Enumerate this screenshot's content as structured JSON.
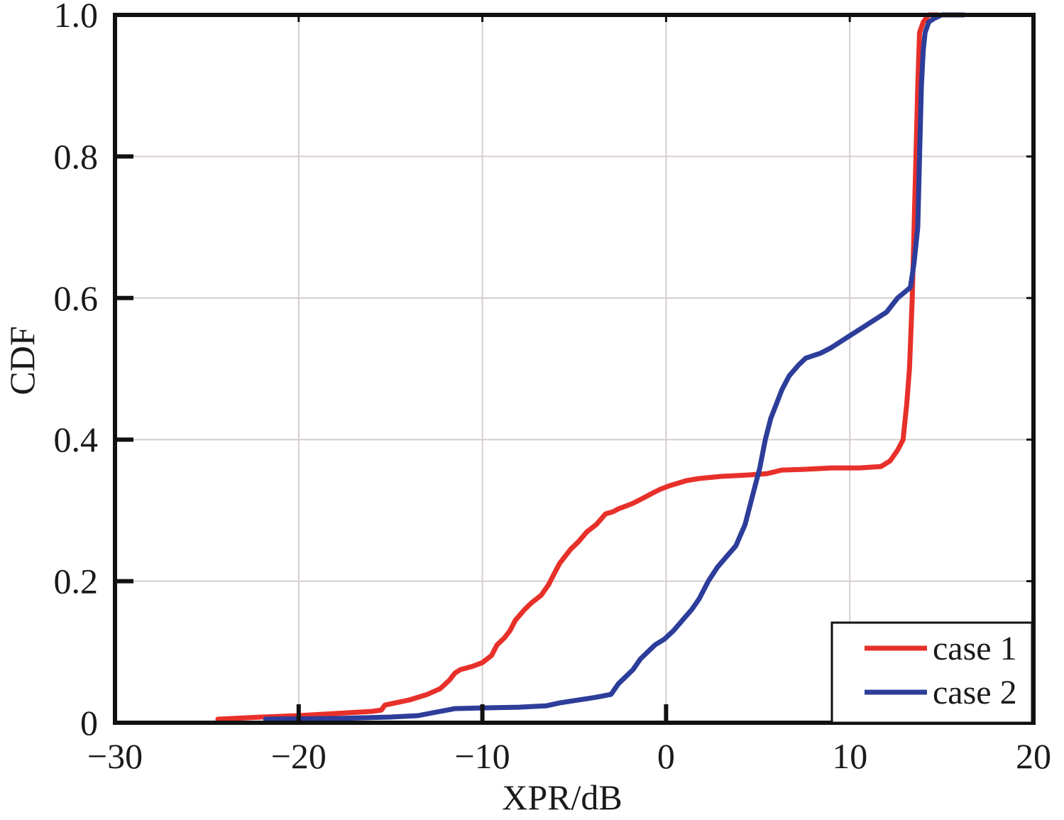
{
  "chart_data": {
    "type": "line",
    "title": "",
    "xlabel": "XPR/dB",
    "ylabel": "CDF",
    "xlim": [
      -30,
      20
    ],
    "ylim": [
      0,
      1
    ],
    "x_ticks": [
      -30,
      -20,
      -10,
      0,
      10,
      20
    ],
    "x_tick_labels": [
      "−30",
      "−20",
      "−10",
      "0",
      "10",
      "20"
    ],
    "y_ticks": [
      0,
      0.2,
      0.4,
      0.6,
      0.8,
      1.0
    ],
    "y_tick_labels": [
      "0",
      "0.2",
      "0.4",
      "0.6",
      "0.8",
      "1.0"
    ],
    "grid": true,
    "legend_position": "bottom-right",
    "series": [
      {
        "name": "case 1",
        "color": "#e8302a",
        "x": [
          -24.4,
          -22,
          -20,
          -18,
          -16,
          -15.5,
          -15.3,
          -14,
          -13,
          -12.3,
          -11.8,
          -11.5,
          -11.2,
          -10.5,
          -10,
          -9.5,
          -9.2,
          -8.8,
          -8.5,
          -8.2,
          -7.7,
          -7.3,
          -6.8,
          -6.4,
          -6.1,
          -5.8,
          -5.5,
          -5.2,
          -4.8,
          -4.3,
          -3.8,
          -3.3,
          -2.9,
          -2.6,
          -1.8,
          -1.2,
          -0.7,
          -0.3,
          0.2,
          0.6,
          1.1,
          1.8,
          3,
          4.5,
          5.5,
          6.3,
          7.5,
          9,
          10.5,
          11.7,
          12.2,
          12.6,
          12.9,
          13.1,
          13.25,
          13.4,
          13.5,
          13.6,
          13.7,
          13.8,
          14,
          14.3,
          14.8
        ],
        "y": [
          0.005,
          0.008,
          0.01,
          0.013,
          0.016,
          0.018,
          0.025,
          0.032,
          0.04,
          0.048,
          0.06,
          0.07,
          0.075,
          0.08,
          0.085,
          0.095,
          0.11,
          0.12,
          0.13,
          0.145,
          0.16,
          0.17,
          0.18,
          0.195,
          0.21,
          0.225,
          0.235,
          0.245,
          0.255,
          0.27,
          0.28,
          0.295,
          0.298,
          0.302,
          0.31,
          0.318,
          0.325,
          0.33,
          0.335,
          0.338,
          0.342,
          0.345,
          0.348,
          0.35,
          0.352,
          0.357,
          0.358,
          0.36,
          0.36,
          0.362,
          0.37,
          0.385,
          0.4,
          0.45,
          0.5,
          0.6,
          0.7,
          0.8,
          0.9,
          0.975,
          0.99,
          1.0,
          1.0
        ]
      },
      {
        "name": "case 2",
        "color": "#2d3d9a",
        "x": [
          -21.8,
          -18,
          -15,
          -13.5,
          -12.5,
          -11.5,
          -10,
          -8,
          -6.5,
          -5.8,
          -4.8,
          -3.8,
          -3.0,
          -2.6,
          -2.2,
          -1.8,
          -1.4,
          -1.0,
          -0.6,
          -0.1,
          0.4,
          0.9,
          1.4,
          1.8,
          2.3,
          2.8,
          3.3,
          3.8,
          4.3,
          4.7,
          5.1,
          5.4,
          5.7,
          6.0,
          6.3,
          6.7,
          7.2,
          7.6,
          8.4,
          9.0,
          9.6,
          10.2,
          10.8,
          11.4,
          12.0,
          12.6,
          13.3,
          13.5,
          13.7,
          13.8,
          13.9,
          14.0,
          14.1,
          14.3,
          14.6,
          15.0,
          15.6,
          16.2
        ],
        "y": [
          0.005,
          0.006,
          0.008,
          0.01,
          0.015,
          0.02,
          0.021,
          0.022,
          0.024,
          0.028,
          0.032,
          0.036,
          0.04,
          0.055,
          0.065,
          0.075,
          0.09,
          0.1,
          0.11,
          0.118,
          0.13,
          0.145,
          0.16,
          0.175,
          0.2,
          0.22,
          0.235,
          0.25,
          0.28,
          0.32,
          0.36,
          0.4,
          0.43,
          0.45,
          0.47,
          0.49,
          0.505,
          0.515,
          0.522,
          0.53,
          0.54,
          0.55,
          0.56,
          0.57,
          0.58,
          0.6,
          0.615,
          0.65,
          0.7,
          0.8,
          0.9,
          0.95,
          0.975,
          0.99,
          0.995,
          1.0,
          1.0,
          1.0
        ]
      }
    ]
  }
}
